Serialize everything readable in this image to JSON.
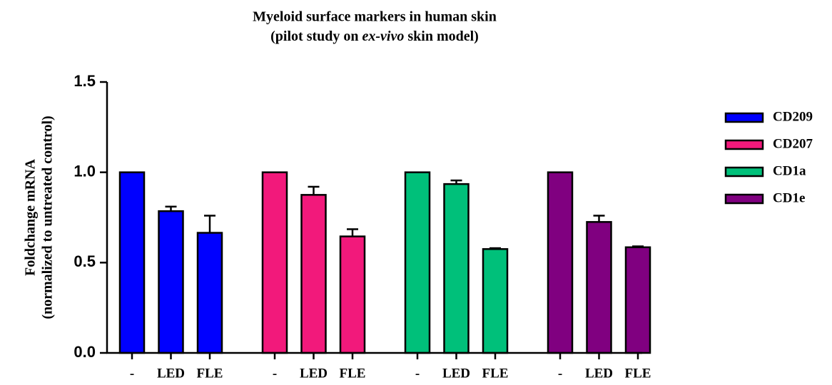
{
  "chart_data": {
    "type": "grouped-bar",
    "title": "Myeloid surface markers in human skin",
    "subtitle": [
      "(pilot study on ",
      "ex-vivo",
      " skin model)"
    ],
    "y_label": [
      "Foldchange mRNA",
      "(normalized to untreated control)"
    ],
    "categories": [
      "-",
      "LED",
      "FLE"
    ],
    "series": [
      {
        "name": "CD209",
        "color": "#0000ff",
        "values": [
          1.0,
          0.785,
          0.665
        ],
        "errors": [
          null,
          0.025,
          0.095
        ]
      },
      {
        "name": "CD207",
        "color": "#f2197b",
        "values": [
          1.0,
          0.875,
          0.645
        ],
        "errors": [
          null,
          0.045,
          0.04
        ]
      },
      {
        "name": "CD1a",
        "color": "#00c07a",
        "values": [
          1.0,
          0.935,
          0.575
        ],
        "errors": [
          null,
          0.02,
          0.005
        ]
      },
      {
        "name": "CD1e",
        "color": "#800080",
        "values": [
          1.0,
          0.725,
          0.585
        ],
        "errors": [
          null,
          0.035,
          0.005
        ]
      }
    ],
    "ylim": [
      0,
      1.5
    ],
    "yticks": [
      {
        "value": 0,
        "label": "0.0"
      },
      {
        "value": 0.5,
        "label": "0.5"
      },
      {
        "value": 1,
        "label": "1.0"
      },
      {
        "value": 1.5,
        "label": "1.5"
      }
    ],
    "legend": "right"
  }
}
